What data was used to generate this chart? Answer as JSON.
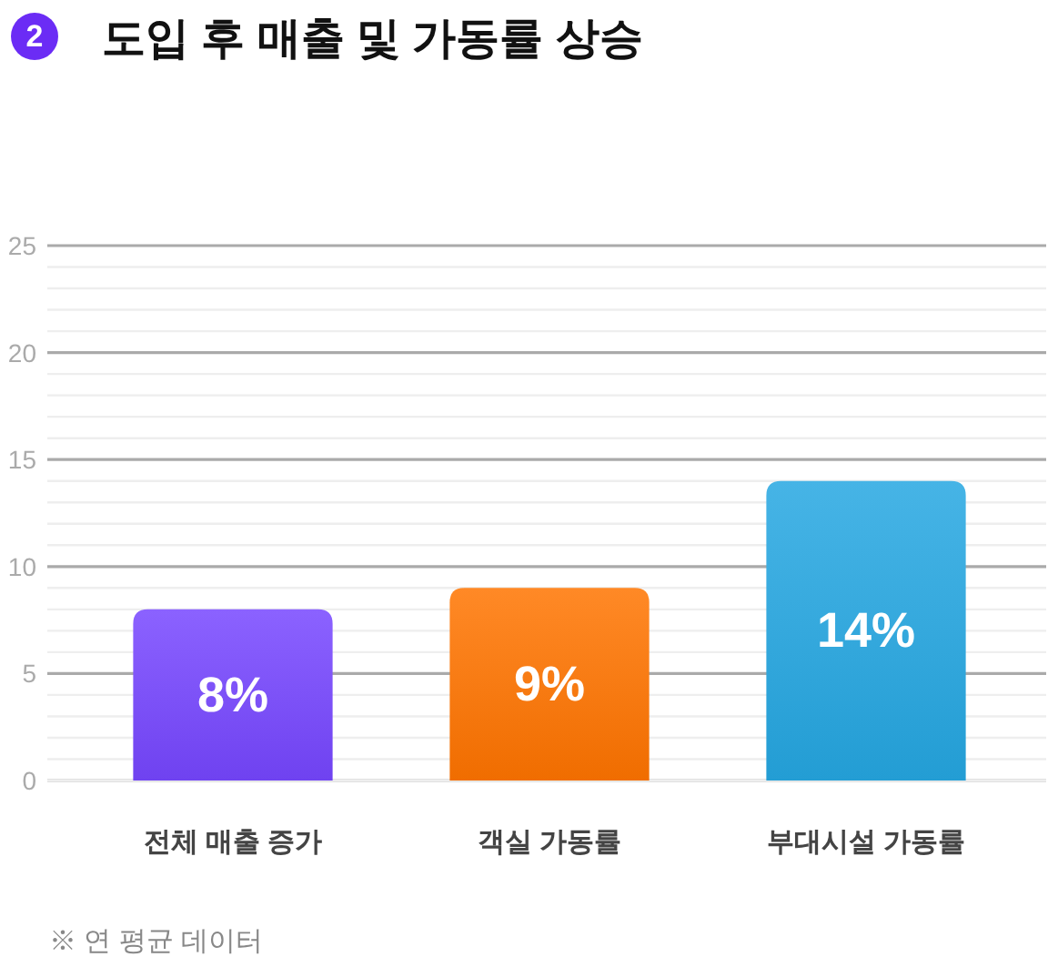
{
  "chart_data": {
    "type": "bar",
    "title": "도입 후 매출 및 가동률 상승",
    "categories": [
      "전체 매출 증가",
      "객실 가동률",
      "부대시설 가동률"
    ],
    "values": [
      8,
      9,
      14
    ],
    "value_labels": [
      "8%",
      "9%",
      "14%"
    ],
    "colors": [
      "#7646ff",
      "#ff7400",
      "#25a7e2"
    ],
    "ylim": [
      0,
      25
    ],
    "yticks": [
      0,
      {
        "value": 1,
        "label": null
      },
      {
        "value": 2,
        "label": null
      },
      {
        "value": 3,
        "label": null
      },
      {
        "value": 4,
        "label": null
      },
      5,
      {
        "value": 6,
        "label": null
      },
      {
        "value": 7,
        "label": null
      },
      {
        "value": 8,
        "label": null
      },
      {
        "value": 9,
        "label": null
      },
      10,
      {
        "value": 11,
        "label": null
      },
      {
        "value": 12,
        "label": null
      },
      {
        "value": 13,
        "label": null
      },
      {
        "value": 14,
        "label": null
      },
      15,
      {
        "value": 16,
        "label": null
      },
      {
        "value": 17,
        "label": null
      },
      {
        "value": 18,
        "label": null
      },
      {
        "value": 19,
        "label": null
      },
      20,
      {
        "value": 21,
        "label": null
      },
      {
        "value": 22,
        "label": null
      },
      {
        "value": 23,
        "label": null
      },
      {
        "value": 24,
        "label": null
      },
      25
    ],
    "grid": "y",
    "annotations": [
      "2",
      "※ 연 평균 데이터"
    ]
  }
}
